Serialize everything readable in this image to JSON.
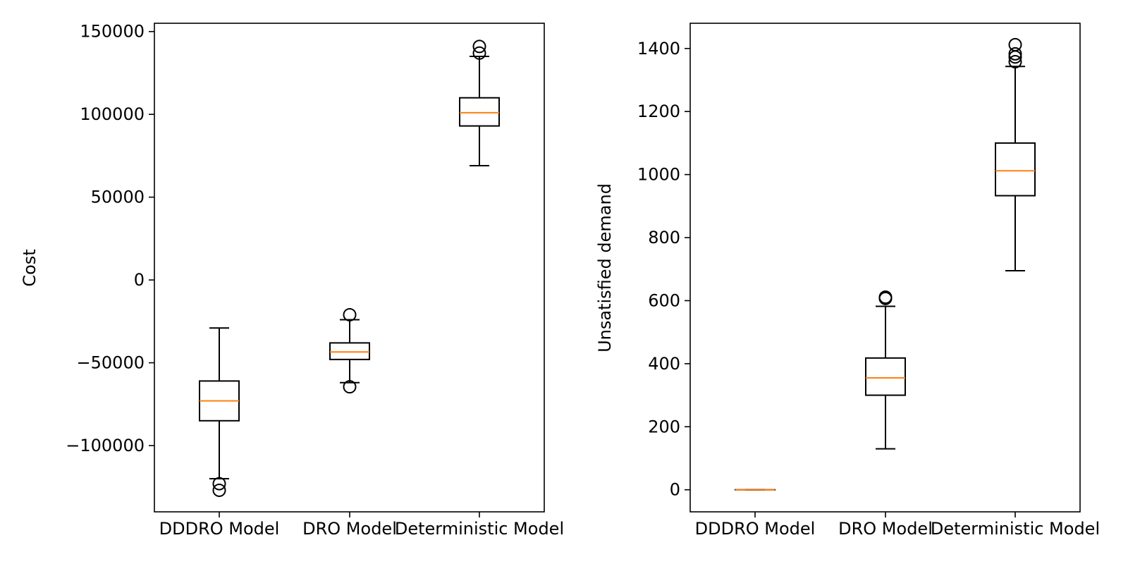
{
  "chart_data": [
    {
      "type": "box",
      "ylabel": "Cost",
      "ylim": [
        -140000,
        155000
      ],
      "yticks": [
        -100000,
        -50000,
        0,
        50000,
        100000,
        150000
      ],
      "ytick_labels": [
        "−100000",
        "−50000",
        "0",
        "50000",
        "100000",
        "150000"
      ],
      "categories": [
        "DDDRO Model",
        "DRO Model",
        "Deterministic Model"
      ],
      "boxes": [
        {
          "category": "DDDRO Model",
          "whisker_low": -120000,
          "q1": -85000,
          "median": -73000,
          "q3": -61000,
          "whisker_high": -29000,
          "outliers": [
            -123000,
            -127000
          ]
        },
        {
          "category": "DRO Model",
          "whisker_low": -62000,
          "q1": -48000,
          "median": -43500,
          "q3": -38000,
          "whisker_high": -24000,
          "outliers": [
            -21000,
            -64500
          ]
        },
        {
          "category": "Deterministic Model",
          "whisker_low": 69000,
          "q1": 93000,
          "median": 101000,
          "q3": 110000,
          "whisker_high": 135000,
          "outliers": [
            137000,
            141000
          ]
        }
      ],
      "grid": false,
      "legend": "none"
    },
    {
      "type": "box",
      "ylabel": "Unsatisfied demand",
      "ylim": [
        -70,
        1480
      ],
      "yticks": [
        0,
        200,
        400,
        600,
        800,
        1000,
        1200,
        1400
      ],
      "ytick_labels": [
        "0",
        "200",
        "400",
        "600",
        "800",
        "1000",
        "1200",
        "1400"
      ],
      "categories": [
        "DDDRO Model",
        "DRO Model",
        "Deterministic Model"
      ],
      "boxes": [
        {
          "category": "DDDRO Model",
          "whisker_low": 0,
          "q1": 0,
          "median": 0,
          "q3": 0,
          "whisker_high": 0,
          "outliers": []
        },
        {
          "category": "DRO Model",
          "whisker_low": 130,
          "q1": 300,
          "median": 355,
          "q3": 418,
          "whisker_high": 582,
          "outliers": [
            607,
            611
          ]
        },
        {
          "category": "Deterministic Model",
          "whisker_low": 695,
          "q1": 933,
          "median": 1012,
          "q3": 1100,
          "whisker_high": 1343,
          "outliers": [
            1358,
            1373,
            1383,
            1412
          ]
        }
      ],
      "grid": false,
      "legend": "none"
    }
  ],
  "style": {
    "box_color": "#000000",
    "median_color": "#ff7f0e",
    "background": "#ffffff"
  }
}
